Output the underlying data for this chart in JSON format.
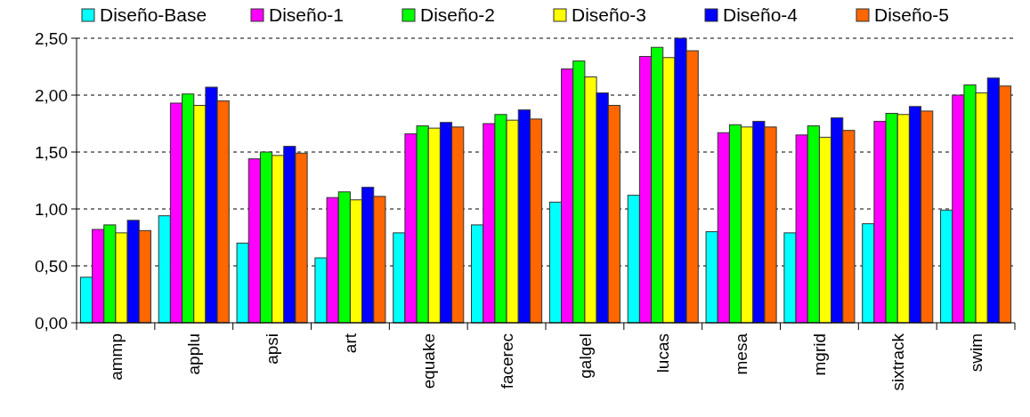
{
  "chart_data": {
    "type": "bar",
    "categories": [
      "ammp",
      "applu",
      "apsi",
      "art",
      "equake",
      "facerec",
      "galgel",
      "lucas",
      "mesa",
      "mgrid",
      "sixtrack",
      "swim"
    ],
    "series": [
      {
        "name": "Diseño-Base",
        "color": "#00ffff",
        "values": [
          0.4,
          0.94,
          0.7,
          0.57,
          0.79,
          0.86,
          1.06,
          1.12,
          0.8,
          0.79,
          0.87,
          0.99
        ]
      },
      {
        "name": "Diseño-1",
        "color": "#ff00ff",
        "values": [
          0.82,
          1.93,
          1.44,
          1.1,
          1.66,
          1.75,
          2.23,
          2.34,
          1.67,
          1.65,
          1.77,
          2.0
        ]
      },
      {
        "name": "Diseño-2",
        "color": "#00ff00",
        "values": [
          0.86,
          2.01,
          1.5,
          1.15,
          1.73,
          1.83,
          2.3,
          2.42,
          1.74,
          1.73,
          1.84,
          2.09
        ]
      },
      {
        "name": "Diseño-3",
        "color": "#ffff00",
        "values": [
          0.79,
          1.91,
          1.47,
          1.08,
          1.71,
          1.78,
          2.16,
          2.33,
          1.72,
          1.63,
          1.83,
          2.02
        ]
      },
      {
        "name": "Diseño-4",
        "color": "#0000ff",
        "values": [
          0.9,
          2.07,
          1.55,
          1.19,
          1.76,
          1.87,
          2.02,
          2.5,
          1.77,
          1.8,
          1.9,
          2.15
        ]
      },
      {
        "name": "Diseño-5",
        "color": "#ff6600",
        "values": [
          0.81,
          1.95,
          1.49,
          1.11,
          1.72,
          1.79,
          1.91,
          2.39,
          1.72,
          1.69,
          1.86,
          2.08
        ]
      }
    ],
    "ylim": [
      0,
      2.5
    ],
    "yticks": [
      {
        "value": 0,
        "label": "0,00"
      },
      {
        "value": 0.5,
        "label": "0,50"
      },
      {
        "value": 1,
        "label": "1,00"
      },
      {
        "value": 1.5,
        "label": "1,50"
      },
      {
        "value": 2,
        "label": "2,00"
      },
      {
        "value": 2.5,
        "label": "2,50"
      }
    ],
    "grid": "y",
    "legend": "top"
  }
}
